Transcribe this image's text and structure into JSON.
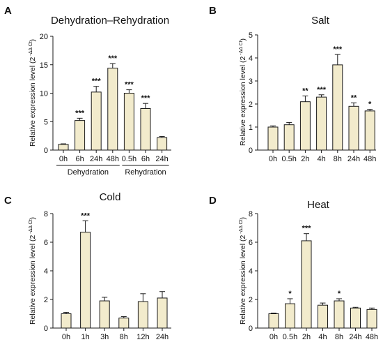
{
  "style": {
    "bar_fill": "#f2ebcc",
    "bar_stroke": "#1a1a1a",
    "axis_color": "#1a1a1a"
  },
  "chart_data": [
    {
      "panel": "A",
      "type": "bar",
      "title": "Dehydration–Rehydration",
      "ylabel_main": "Relative expression level (2",
      "ylabel_sup": "-ΔΔ Ct",
      "ylabel_end": ")",
      "ylim": [
        0,
        20
      ],
      "yticks": [
        0,
        5,
        10,
        15,
        20
      ],
      "categories": [
        "0h",
        "6h",
        "24h",
        "48h",
        "0.5h",
        "6h",
        "24h"
      ],
      "values": [
        1.0,
        5.2,
        10.2,
        14.4,
        10.0,
        7.3,
        2.2
      ],
      "errors": [
        0.1,
        0.4,
        1.0,
        0.8,
        0.6,
        0.9,
        0.2
      ],
      "significance": [
        "",
        "***",
        "***",
        "***",
        "***",
        "***",
        ""
      ],
      "groups": [
        {
          "label": "Dehydration",
          "start": 0,
          "end": 3
        },
        {
          "label": "Rehydration",
          "start": 4,
          "end": 6
        }
      ]
    },
    {
      "panel": "B",
      "type": "bar",
      "title": "Salt",
      "ylabel_main": "Relative expression level (2",
      "ylabel_sup": "-ΔΔ Ct",
      "ylabel_end": ")",
      "ylim": [
        0,
        5
      ],
      "yticks": [
        0,
        1,
        2,
        3,
        4,
        5
      ],
      "categories": [
        "0h",
        "0.5h",
        "2h",
        "4h",
        "8h",
        "24h",
        "48h"
      ],
      "values": [
        1.0,
        1.1,
        2.1,
        2.3,
        3.7,
        1.9,
        1.7
      ],
      "errors": [
        0.05,
        0.1,
        0.25,
        0.1,
        0.45,
        0.15,
        0.07
      ],
      "significance": [
        "",
        "",
        "**",
        "***",
        "***",
        "**",
        "*"
      ]
    },
    {
      "panel": "C",
      "type": "bar",
      "title": "Cold",
      "ylabel_main": "Relative expression level (2",
      "ylabel_sup": "-ΔΔ Ct",
      "ylabel_end": ")",
      "ylim": [
        0,
        8
      ],
      "yticks": [
        0,
        2,
        4,
        6,
        8
      ],
      "categories": [
        "0h",
        "1h",
        "3h",
        "8h",
        "12h",
        "24h"
      ],
      "values": [
        1.0,
        6.7,
        1.9,
        0.7,
        1.85,
        2.1
      ],
      "errors": [
        0.1,
        0.8,
        0.25,
        0.1,
        0.55,
        0.45
      ],
      "significance": [
        "",
        "***",
        "",
        "",
        "",
        ""
      ]
    },
    {
      "panel": "D",
      "type": "bar",
      "title": "Heat",
      "ylabel_main": "Relative expression level (2",
      "ylabel_sup": "-ΔΔ Ct",
      "ylabel_end": ")",
      "ylim": [
        0,
        8
      ],
      "yticks": [
        0,
        2,
        4,
        6,
        8
      ],
      "categories": [
        "0h",
        "0.5h",
        "2h",
        "4h",
        "8h",
        "24h",
        "48h"
      ],
      "values": [
        1.0,
        1.7,
        6.1,
        1.6,
        1.9,
        1.4,
        1.3
      ],
      "errors": [
        0.05,
        0.35,
        0.5,
        0.15,
        0.15,
        0.05,
        0.1
      ],
      "significance": [
        "",
        "*",
        "***",
        "",
        "*",
        "",
        ""
      ]
    }
  ]
}
